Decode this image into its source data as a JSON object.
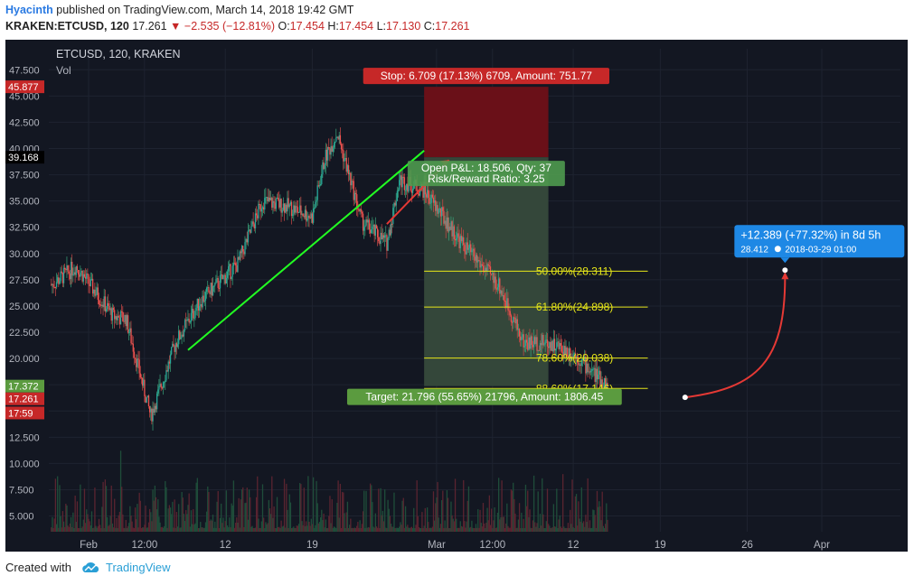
{
  "header": {
    "author": "Hyacinth",
    "published_text": "published on TradingView.com, March 14, 2018 19:42 GMT",
    "symbol": "KRAKEN:ETCUSD, 120",
    "last": "17.261",
    "arrow": "▼",
    "change": "−2.535 (−12.81%)",
    "open_label": "O:",
    "open": "17.454",
    "high_label": "H:",
    "high": "17.454",
    "low_label": "L:",
    "low": "17.130",
    "close_label": "C:",
    "close": "17.261"
  },
  "footer": {
    "created_with": "Created with",
    "brand": "TradingView"
  },
  "colors": {
    "background": "#131722",
    "up": "#2e7d32",
    "down": "#c62828",
    "fib": "#e6e619",
    "trend": "#22ff22",
    "arrow": "#e53935",
    "stop_zone": "#6a1018",
    "target_zone": "#34473a",
    "projection": "#1e88e5"
  },
  "chart_data": {
    "type": "candlestick",
    "title": "ETCUSD, 120, KRAKEN",
    "volume_label": "Vol",
    "y_ticks": [
      "5.000",
      "7.500",
      "10.000",
      "12.500",
      "15.000",
      "17.500",
      "20.000",
      "22.500",
      "25.000",
      "27.500",
      "30.000",
      "32.500",
      "35.000",
      "37.500",
      "40.000",
      "42.500",
      "45.000",
      "47.500"
    ],
    "ylim": [
      3.5,
      49.5
    ],
    "x_ticks": [
      "Feb",
      "12:00",
      "12",
      "19",
      "Mar",
      "12:00",
      "12",
      "19",
      "26",
      "Apr"
    ],
    "x_dates": [
      "2018-02-01",
      "2018-02-05 12:00",
      "2018-02-12",
      "2018-02-19",
      "2018-03-01",
      "2018-03-05 12:00",
      "2018-03-12",
      "2018-03-19",
      "2018-03-26",
      "2018-04-01"
    ],
    "price_path": [
      {
        "date": "2018-01-23",
        "price": 33.0
      },
      {
        "date": "2018-01-26",
        "price": 30.5
      },
      {
        "date": "2018-01-29",
        "price": 27.0
      },
      {
        "date": "2018-01-31",
        "price": 28.8
      },
      {
        "date": "2018-02-03",
        "price": 24.0
      },
      {
        "date": "2018-02-04",
        "price": 23.8
      },
      {
        "date": "2018-02-06",
        "price": 14.5
      },
      {
        "date": "2018-02-08",
        "price": 21.5
      },
      {
        "date": "2018-02-10",
        "price": 25.5
      },
      {
        "date": "2018-02-13",
        "price": 29.0
      },
      {
        "date": "2018-02-15",
        "price": 35.0
      },
      {
        "date": "2018-02-17",
        "price": 34.5
      },
      {
        "date": "2018-02-19",
        "price": 33.5
      },
      {
        "date": "2018-02-20",
        "price": 39.0
      },
      {
        "date": "2018-02-21",
        "price": 41.5
      },
      {
        "date": "2018-02-23",
        "price": 33.0
      },
      {
        "date": "2018-02-25",
        "price": 31.0
      },
      {
        "date": "2018-02-26",
        "price": 37.0
      },
      {
        "date": "2018-02-28",
        "price": 36.0
      },
      {
        "date": "2018-03-03",
        "price": 31.0
      },
      {
        "date": "2018-03-06",
        "price": 27.0
      },
      {
        "date": "2018-03-08",
        "price": 21.5
      },
      {
        "date": "2018-03-10",
        "price": 21.5
      },
      {
        "date": "2018-03-12",
        "price": 20.5
      },
      {
        "date": "2018-03-14 19:00",
        "price": 17.26
      }
    ],
    "trendline": {
      "from": {
        "date": "2018-02-09",
        "price": 20.8
      },
      "to": {
        "date": "2018-02-28",
        "price": 39.8
      }
    },
    "position": {
      "type": "long",
      "entry": 39.168,
      "stop": 45.877,
      "target": 17.372,
      "start_date": "2018-02-28",
      "end_date": "2018-03-10",
      "stop_label": "Stop: 6.709 (17.13%) 6709, Amount: 751.77",
      "open_label": "Open P&L: 18.506, Qty: 37",
      "rr_label": "Risk/Reward Ratio: 3.25",
      "target_label": "Target: 21.796 (55.65%) 21796, Amount: 1806.45"
    },
    "fib_levels": [
      {
        "label": "50.00%(28.311)",
        "value": 28.311
      },
      {
        "label": "61.80%(24.898)",
        "value": 24.898
      },
      {
        "label": "78.60%(20.038)",
        "value": 20.038
      },
      {
        "label": "88.60%(17.146)",
        "value": 17.146
      }
    ],
    "price_labels": [
      "47.500",
      "45.877",
      "39.168",
      "17.372",
      "17.261",
      "17:59"
    ],
    "projection": {
      "from": {
        "date": "2018-03-21",
        "price": 16.3
      },
      "to": {
        "date": "2018-03-29 01:00",
        "price": 28.412
      },
      "line1": "+12.389 (+77.32%) in 8d 5h",
      "line2_value": "28.412",
      "line2_date": "2018-03-29  01:00"
    }
  }
}
